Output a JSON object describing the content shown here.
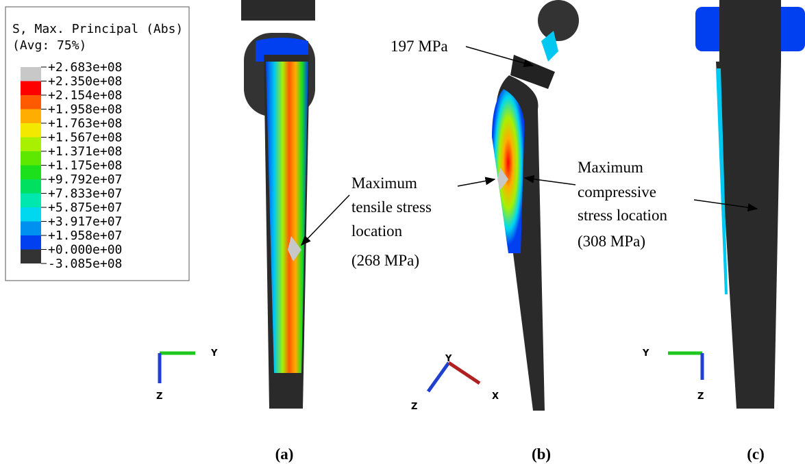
{
  "legend": {
    "title": [
      "S, Max. Principal (Abs)",
      "(Avg: 75%)"
    ],
    "labels": [
      "+2.683e+08",
      "+2.350e+08",
      "+2.154e+08",
      "+1.958e+08",
      "+1.763e+08",
      "+1.567e+08",
      "+1.371e+08",
      "+1.175e+08",
      "+9.792e+07",
      "+7.833e+07",
      "+5.875e+07",
      "+3.917e+07",
      "+1.958e+07",
      "+0.000e+00",
      "-3.085e+08"
    ],
    "colors": [
      "#c8c8c8",
      "#ff0000",
      "#ff5a00",
      "#ffae00",
      "#f2e800",
      "#a8f000",
      "#5ee800",
      "#1ce01c",
      "#00e060",
      "#00e8b0",
      "#00d8f0",
      "#0090f0",
      "#0040f0",
      "#333333"
    ]
  },
  "annotations": {
    "tensile": [
      "Maximum",
      "tensile stress",
      "location",
      "(268 MPa)"
    ],
    "neck": "197 MPa",
    "compressive": [
      "Maximum",
      "compressive",
      "stress location",
      "(308 MPa)"
    ]
  },
  "triads": {
    "a": [
      "Y",
      "Z"
    ],
    "b": [
      "Y",
      "Z",
      "X"
    ],
    "c": [
      "Y",
      "Z"
    ]
  },
  "panels": [
    "(a)",
    "(b)",
    "(c)"
  ]
}
